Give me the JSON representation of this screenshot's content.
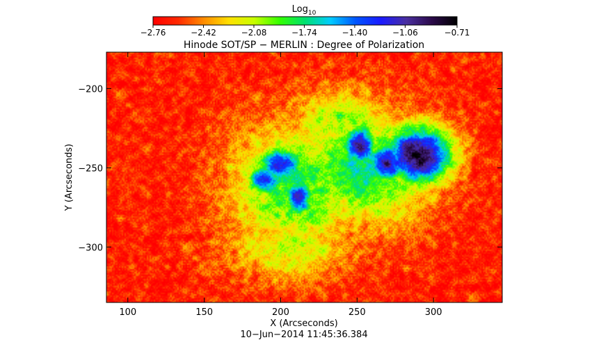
{
  "chart_data": {
    "type": "heatmap",
    "title": "Hinode SOT/SP − MERLIN : Degree of Polarization",
    "colorbar": {
      "label": "Log",
      "label_sub": "10",
      "ticks": [
        -2.76,
        -2.42,
        -2.08,
        -1.74,
        -1.4,
        -1.06,
        -0.71
      ],
      "tick_labels": [
        "−2.76",
        "−2.42",
        "−2.08",
        "−1.74",
        "−1.40",
        "−1.06",
        "−0.71"
      ],
      "range": [
        -2.76,
        -0.71
      ],
      "colormap": [
        "#000000",
        "#2b0a4a",
        "#4a2fa0",
        "#1a1aff",
        "#0055ff",
        "#00ccff",
        "#00e070",
        "#33ff00",
        "#c8ff00",
        "#ffe000",
        "#ff8c00",
        "#ff2a00",
        "#ff0000"
      ]
    },
    "xlabel": "X (Arcseconds)",
    "ylabel": "Y (Arcseconds)",
    "xlim": [
      86,
      345
    ],
    "ylim": [
      -335,
      -177
    ],
    "xticks": [
      100,
      150,
      200,
      250,
      300
    ],
    "xtick_labels": [
      "100",
      "150",
      "200",
      "250",
      "300"
    ],
    "yticks": [
      -200,
      -250,
      -300
    ],
    "ytick_labels": [
      "−200",
      "−250",
      "−300"
    ],
    "timestamp": "10−Jun−2014 11:45:36.384",
    "features": [
      {
        "x": 290,
        "y": -242,
        "peak": -0.8,
        "sx": 16,
        "sy": 13
      },
      {
        "x": 270,
        "y": -247,
        "peak": -1.0,
        "sx": 9,
        "sy": 9
      },
      {
        "x": 252,
        "y": -236,
        "peak": -1.0,
        "sx": 8,
        "sy": 9
      },
      {
        "x": 200,
        "y": -248,
        "peak": -1.15,
        "sx": 11,
        "sy": 8
      },
      {
        "x": 190,
        "y": -258,
        "peak": -1.2,
        "sx": 8,
        "sy": 7
      },
      {
        "x": 212,
        "y": -268,
        "peak": -1.25,
        "sx": 7,
        "sy": 10
      },
      {
        "x": 255,
        "y": -250,
        "peak": -1.7,
        "sx": 30,
        "sy": 25
      },
      {
        "x": 210,
        "y": -262,
        "peak": -1.8,
        "sx": 30,
        "sy": 28
      },
      {
        "x": 240,
        "y": -222,
        "peak": -2.0,
        "sx": 25,
        "sy": 15
      },
      {
        "x": 205,
        "y": -300,
        "peak": -2.1,
        "sx": 30,
        "sy": 15
      }
    ]
  }
}
